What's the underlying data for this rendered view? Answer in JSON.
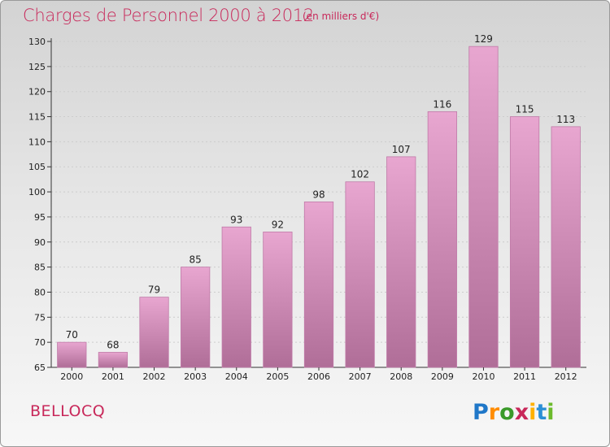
{
  "header": {
    "title": "Charges de Personnel 2000 à 2012",
    "subtitle": "(en milliers d'€)"
  },
  "footer": {
    "city": "BELLOCQ",
    "logo_text": "Proxiti"
  },
  "colors": {
    "title": "#c8285a",
    "city": "#c8285a",
    "bar_light": "#e8a6d0",
    "bar_dark": "#b06e98",
    "bar_edge": "#c07aa8",
    "axis": "#333333",
    "grid": "#cccccc",
    "logo": [
      "#1f77c8",
      "#ff8c00",
      "#3a9a2a",
      "#c8285a",
      "#ffb000",
      "#2b8fd6",
      "#6cba2c"
    ]
  },
  "chart_data": {
    "type": "bar",
    "title": "Charges de Personnel 2000 à 2012",
    "subtitle": "(en milliers d'€)",
    "categories": [
      "2000",
      "2001",
      "2002",
      "2003",
      "2004",
      "2005",
      "2006",
      "2007",
      "2008",
      "2009",
      "2010",
      "2011",
      "2012"
    ],
    "values": [
      70,
      68,
      79,
      85,
      93,
      92,
      98,
      102,
      107,
      116,
      129,
      115,
      113
    ],
    "ylim": [
      65,
      130
    ],
    "yticks": [
      65,
      70,
      75,
      80,
      85,
      90,
      95,
      100,
      105,
      110,
      115,
      120,
      125,
      130
    ],
    "xlabel": "",
    "ylabel": "",
    "grid": true,
    "data_labels": true
  }
}
